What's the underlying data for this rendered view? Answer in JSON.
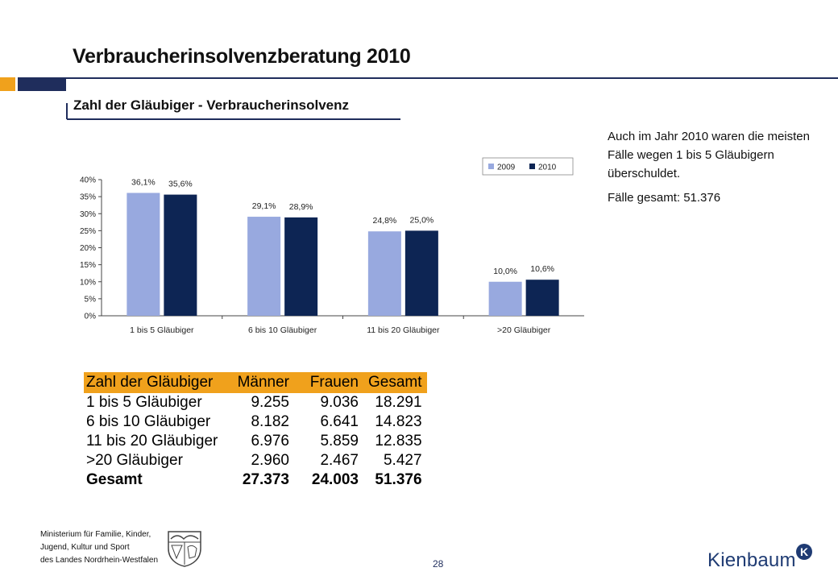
{
  "title": "Verbraucherinsolvenzberatung 2010",
  "subtitle": "Zahl der Gläubiger - Verbraucherinsolvenz",
  "colors": {
    "navy": "#1f2d5c",
    "orange": "#f0a11c",
    "bar_2009": "#98a9df",
    "bar_2010": "#0d2554"
  },
  "chart_data": {
    "type": "bar",
    "categories": [
      "1 bis 5 Gläubiger",
      "6 bis 10 Gläubiger",
      "11 bis 20 Gläubiger",
      ">20 Gläubiger"
    ],
    "series": [
      {
        "name": "2009",
        "values": [
          36.1,
          29.1,
          24.8,
          10.0
        ],
        "labels": [
          "36,1%",
          "29,1%",
          "24,8%",
          "10,0%"
        ]
      },
      {
        "name": "2010",
        "values": [
          35.6,
          28.9,
          25.0,
          10.6
        ],
        "labels": [
          "35,6%",
          "28,9%",
          "25,0%",
          "10,6%"
        ]
      }
    ],
    "ylim": [
      0,
      40
    ],
    "yticks": [
      "0%",
      "5%",
      "10%",
      "15%",
      "20%",
      "25%",
      "30%",
      "35%",
      "40%"
    ],
    "legend": "top-right",
    "grid": false
  },
  "text_block": {
    "paragraph": "Auch im Jahr 2010 waren die meisten Fälle wegen 1 bis 5 Gläubigern überschuldet.",
    "total": "Fälle gesamt: 51.376"
  },
  "table": {
    "headers": [
      "Zahl der Gläubiger",
      "Männer",
      "Frauen",
      "Gesamt"
    ],
    "rows": [
      [
        "1 bis 5 Gläubiger",
        "9.255",
        "9.036",
        "18.291"
      ],
      [
        "6 bis 10 Gläubiger",
        "8.182",
        "6.641",
        "14.823"
      ],
      [
        "11 bis 20 Gläubiger",
        "6.976",
        "5.859",
        "12.835"
      ],
      [
        ">20 Gläubiger",
        "2.960",
        "2.467",
        "5.427"
      ]
    ],
    "total": [
      "Gesamt",
      "27.373",
      "24.003",
      "51.376"
    ]
  },
  "footer": {
    "ministry_lines": [
      "Ministerium für Familie, Kinder,",
      "Jugend, Kultur und Sport",
      "des Landes Nordrhein-Westfalen"
    ],
    "page_number": "28",
    "logo_text": "Kienbaum",
    "logo_badge": "K"
  }
}
